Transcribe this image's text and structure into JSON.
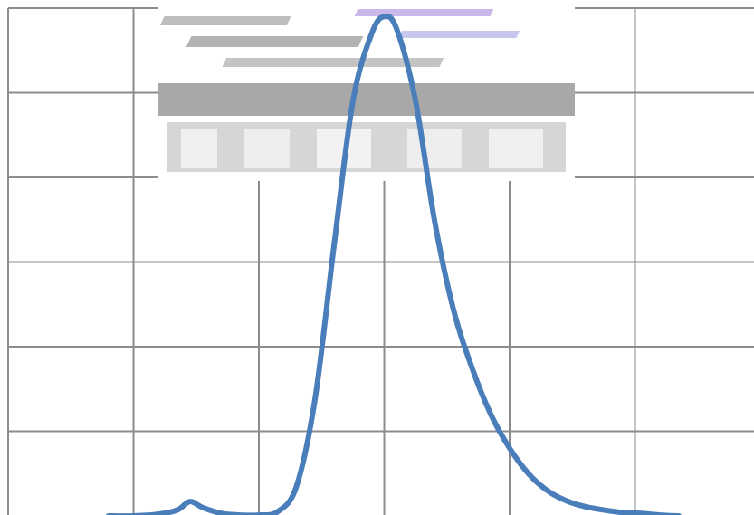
{
  "chart_data": {
    "type": "line",
    "title": "",
    "xlabel": "",
    "ylabel": "",
    "xlim": [
      0,
      6
    ],
    "ylim": [
      0,
      6
    ],
    "grid": true,
    "legend": "none",
    "series": [
      {
        "color": "#4a7ebb",
        "x": [
          0.8,
          1.0,
          1.2,
          1.35,
          1.45,
          1.55,
          1.7,
          1.85,
          2.0,
          2.15,
          2.3,
          2.45,
          2.6,
          2.75,
          2.9,
          3.0,
          3.1,
          3.25,
          3.4,
          3.55,
          3.7,
          3.85,
          4.0,
          4.15,
          4.3,
          4.45,
          4.6,
          4.75,
          4.9,
          5.05,
          5.2,
          5.35
        ],
        "y": [
          0.0,
          0.0,
          0.02,
          0.07,
          0.17,
          0.1,
          0.03,
          0.01,
          0.01,
          0.05,
          0.35,
          1.4,
          3.2,
          4.9,
          5.7,
          5.9,
          5.75,
          4.9,
          3.5,
          2.45,
          1.75,
          1.2,
          0.8,
          0.5,
          0.3,
          0.18,
          0.11,
          0.07,
          0.04,
          0.03,
          0.01,
          0.0
        ]
      }
    ]
  },
  "colors": {
    "grid": "#8c8c8c",
    "curve": "#4a7ebb",
    "noise": "#a8a8a8"
  }
}
